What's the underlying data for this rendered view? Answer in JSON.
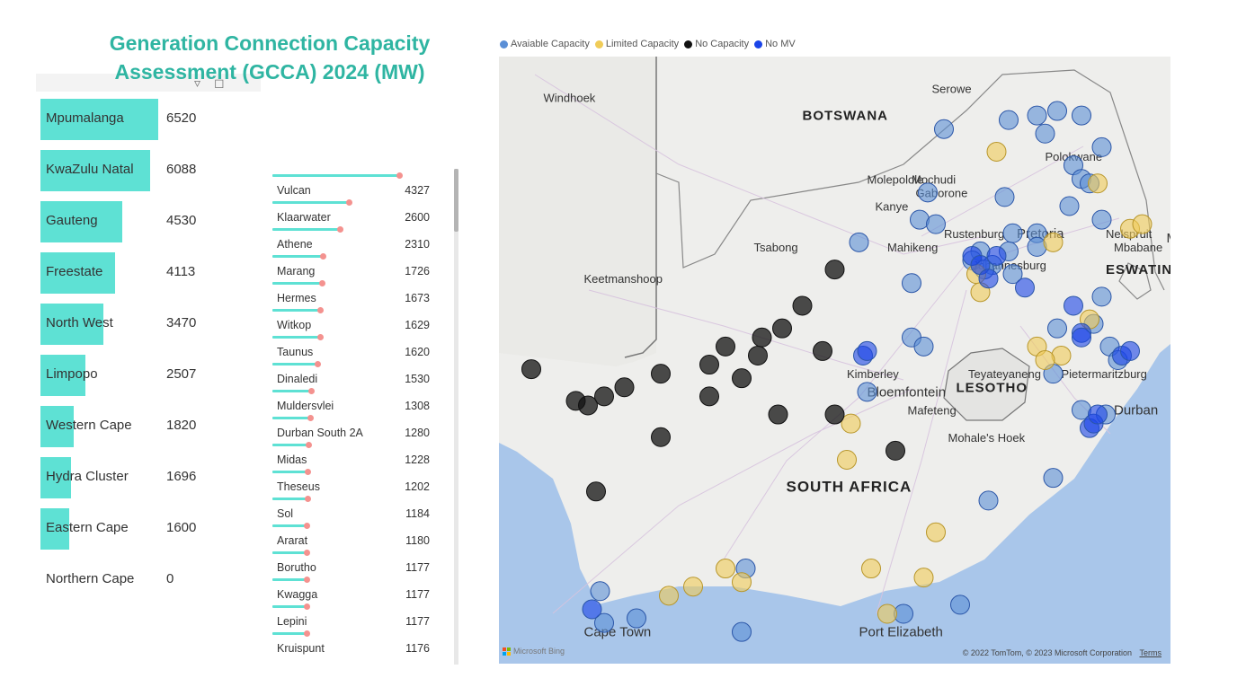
{
  "title": "Generation Connection Capacity Assessment (GCCA) 2024 (MW)",
  "toolbar": {
    "filter_icon": "filter-icon",
    "expand_icon": "focus-mode-icon"
  },
  "chart_data": [
    {
      "type": "bar",
      "orientation": "horizontal",
      "title": "Generation Connection Capacity Assessment (GCCA) 2024 (MW)",
      "categories": [
        "Mpumalanga",
        "KwaZulu Natal",
        "Gauteng",
        "Freestate",
        "North West",
        "Limpopo",
        "Western Cape",
        "Hydra Cluster",
        "Eastern Cape",
        "Northern Cape"
      ],
      "values": [
        6520,
        6088,
        4530,
        4113,
        3470,
        2507,
        1820,
        1696,
        1600,
        0
      ],
      "color": "#5ee1d4"
    },
    {
      "type": "bar",
      "style": "lollipop",
      "orientation": "horizontal",
      "categories": [
        "Vulcan",
        "Klaarwater",
        "Athene",
        "Marang",
        "Hermes",
        "Witkop",
        "Taunus",
        "Dinaledi",
        "Muldersvlei",
        "Durban South 2A",
        "Midas",
        "Theseus",
        "Sol",
        "Ararat",
        "Borutho",
        "Kwagga",
        "Lepini",
        "Kruispunt"
      ],
      "values": [
        4327,
        2600,
        2310,
        1726,
        1673,
        1629,
        1620,
        1530,
        1308,
        1280,
        1228,
        1202,
        1184,
        1180,
        1177,
        1177,
        1177,
        1176
      ],
      "stem_color": "#5ee1d4",
      "dot_color": "#f4928f"
    },
    {
      "type": "scatter",
      "subtype": "bubble-map",
      "legend": [
        {
          "name": "Avaiable Capacity",
          "color": "#5b8fd6"
        },
        {
          "name": "Limited Capacity",
          "color": "#f0cc58"
        },
        {
          "name": "No Capacity",
          "color": "#111111"
        },
        {
          "name": "No MV",
          "color": "#1a44e8"
        }
      ],
      "points": [
        {
          "lon": 28.6,
          "lat": -23.0,
          "status": "Avaiable Capacity"
        },
        {
          "lon": 29.3,
          "lat": -22.9,
          "status": "Avaiable Capacity"
        },
        {
          "lon": 29.8,
          "lat": -22.8,
          "status": "Avaiable Capacity"
        },
        {
          "lon": 30.4,
          "lat": -22.9,
          "status": "Avaiable Capacity"
        },
        {
          "lon": 27.0,
          "lat": -23.2,
          "status": "Avaiable Capacity"
        },
        {
          "lon": 29.5,
          "lat": -23.3,
          "status": "Avaiable Capacity"
        },
        {
          "lon": 30.9,
          "lat": -23.6,
          "status": "Avaiable Capacity"
        },
        {
          "lon": 30.2,
          "lat": -24.0,
          "status": "Avaiable Capacity"
        },
        {
          "lon": 30.4,
          "lat": -24.3,
          "status": "Avaiable Capacity"
        },
        {
          "lon": 26.6,
          "lat": -24.6,
          "status": "Avaiable Capacity"
        },
        {
          "lon": 28.5,
          "lat": -24.7,
          "status": "Avaiable Capacity"
        },
        {
          "lon": 30.1,
          "lat": -24.9,
          "status": "Avaiable Capacity"
        },
        {
          "lon": 30.9,
          "lat": -25.2,
          "status": "Avaiable Capacity"
        },
        {
          "lon": 26.4,
          "lat": -25.2,
          "status": "Avaiable Capacity"
        },
        {
          "lon": 26.8,
          "lat": -25.3,
          "status": "Avaiable Capacity"
        },
        {
          "lon": 28.7,
          "lat": -25.5,
          "status": "Avaiable Capacity"
        },
        {
          "lon": 29.3,
          "lat": -25.5,
          "status": "Avaiable Capacity"
        },
        {
          "lon": 24.9,
          "lat": -25.7,
          "status": "Avaiable Capacity"
        },
        {
          "lon": 28.6,
          "lat": -25.9,
          "status": "Avaiable Capacity"
        },
        {
          "lon": 29.3,
          "lat": -25.8,
          "status": "Avaiable Capacity"
        },
        {
          "lon": 26.2,
          "lat": -26.6,
          "status": "Avaiable Capacity"
        },
        {
          "lon": 28.7,
          "lat": -26.4,
          "status": "Avaiable Capacity"
        },
        {
          "lon": 30.9,
          "lat": -26.9,
          "status": "Avaiable Capacity"
        },
        {
          "lon": 29.8,
          "lat": -27.6,
          "status": "Avaiable Capacity"
        },
        {
          "lon": 26.2,
          "lat": -27.8,
          "status": "Avaiable Capacity"
        },
        {
          "lon": 31.1,
          "lat": -28.0,
          "status": "Avaiable Capacity"
        },
        {
          "lon": 29.7,
          "lat": -28.6,
          "status": "Avaiable Capacity"
        },
        {
          "lon": 25.1,
          "lat": -29.0,
          "status": "Avaiable Capacity"
        },
        {
          "lon": 30.4,
          "lat": -29.4,
          "status": "Avaiable Capacity"
        },
        {
          "lon": 31.0,
          "lat": -29.5,
          "status": "Avaiable Capacity"
        },
        {
          "lon": 29.7,
          "lat": -30.9,
          "status": "Avaiable Capacity"
        },
        {
          "lon": 28.1,
          "lat": -31.4,
          "status": "Avaiable Capacity"
        },
        {
          "lon": 22.1,
          "lat": -32.9,
          "status": "Avaiable Capacity"
        },
        {
          "lon": 27.4,
          "lat": -33.7,
          "status": "Avaiable Capacity"
        },
        {
          "lon": 18.5,
          "lat": -33.4,
          "status": "Avaiable Capacity"
        },
        {
          "lon": 19.4,
          "lat": -34.0,
          "status": "Avaiable Capacity"
        },
        {
          "lon": 18.6,
          "lat": -34.1,
          "status": "Avaiable Capacity"
        },
        {
          "lon": 22.0,
          "lat": -34.3,
          "status": "Avaiable Capacity"
        },
        {
          "lon": 26.0,
          "lat": -33.9,
          "status": "Avaiable Capacity"
        },
        {
          "lon": 31.3,
          "lat": -28.3,
          "status": "Avaiable Capacity"
        },
        {
          "lon": 30.7,
          "lat": -27.5,
          "status": "Avaiable Capacity"
        },
        {
          "lon": 27.9,
          "lat": -25.9,
          "status": "Avaiable Capacity"
        },
        {
          "lon": 27.7,
          "lat": -26.1,
          "status": "Avaiable Capacity"
        },
        {
          "lon": 28.2,
          "lat": -26.2,
          "status": "Avaiable Capacity"
        },
        {
          "lon": 28.0,
          "lat": -26.3,
          "status": "Avaiable Capacity"
        },
        {
          "lon": 26.5,
          "lat": -28.0,
          "status": "Avaiable Capacity"
        },
        {
          "lon": 30.6,
          "lat": -24.4,
          "status": "Avaiable Capacity"
        },
        {
          "lon": 28.3,
          "lat": -23.7,
          "status": "Limited Capacity"
        },
        {
          "lon": 30.8,
          "lat": -24.4,
          "status": "Limited Capacity"
        },
        {
          "lon": 31.6,
          "lat": -25.4,
          "status": "Limited Capacity"
        },
        {
          "lon": 31.9,
          "lat": -25.3,
          "status": "Limited Capacity"
        },
        {
          "lon": 29.7,
          "lat": -25.7,
          "status": "Limited Capacity"
        },
        {
          "lon": 27.8,
          "lat": -26.4,
          "status": "Limited Capacity"
        },
        {
          "lon": 27.9,
          "lat": -26.8,
          "status": "Limited Capacity"
        },
        {
          "lon": 30.6,
          "lat": -27.4,
          "status": "Limited Capacity"
        },
        {
          "lon": 29.3,
          "lat": -28.0,
          "status": "Limited Capacity"
        },
        {
          "lon": 29.9,
          "lat": -28.2,
          "status": "Limited Capacity"
        },
        {
          "lon": 29.5,
          "lat": -28.3,
          "status": "Limited Capacity"
        },
        {
          "lon": 24.7,
          "lat": -29.7,
          "status": "Limited Capacity"
        },
        {
          "lon": 24.6,
          "lat": -30.5,
          "status": "Limited Capacity"
        },
        {
          "lon": 26.8,
          "lat": -32.1,
          "status": "Limited Capacity"
        },
        {
          "lon": 25.2,
          "lat": -32.9,
          "status": "Limited Capacity"
        },
        {
          "lon": 26.5,
          "lat": -33.1,
          "status": "Limited Capacity"
        },
        {
          "lon": 21.6,
          "lat": -32.9,
          "status": "Limited Capacity"
        },
        {
          "lon": 22.0,
          "lat": -33.2,
          "status": "Limited Capacity"
        },
        {
          "lon": 20.8,
          "lat": -33.3,
          "status": "Limited Capacity"
        },
        {
          "lon": 20.2,
          "lat": -33.5,
          "status": "Limited Capacity"
        },
        {
          "lon": 25.6,
          "lat": -33.9,
          "status": "Limited Capacity"
        },
        {
          "lon": 16.8,
          "lat": -28.5,
          "status": "No Capacity"
        },
        {
          "lon": 17.9,
          "lat": -29.2,
          "status": "No Capacity"
        },
        {
          "lon": 18.6,
          "lat": -29.1,
          "status": "No Capacity"
        },
        {
          "lon": 18.2,
          "lat": -29.3,
          "status": "No Capacity"
        },
        {
          "lon": 19.1,
          "lat": -28.9,
          "status": "No Capacity"
        },
        {
          "lon": 20.0,
          "lat": -28.6,
          "status": "No Capacity"
        },
        {
          "lon": 21.2,
          "lat": -28.4,
          "status": "No Capacity"
        },
        {
          "lon": 21.6,
          "lat": -28.0,
          "status": "No Capacity"
        },
        {
          "lon": 22.0,
          "lat": -28.7,
          "status": "No Capacity"
        },
        {
          "lon": 22.4,
          "lat": -28.2,
          "status": "No Capacity"
        },
        {
          "lon": 21.2,
          "lat": -29.1,
          "status": "No Capacity"
        },
        {
          "lon": 23.0,
          "lat": -27.6,
          "status": "No Capacity"
        },
        {
          "lon": 23.5,
          "lat": -27.1,
          "status": "No Capacity"
        },
        {
          "lon": 22.5,
          "lat": -27.8,
          "status": "No Capacity"
        },
        {
          "lon": 24.0,
          "lat": -28.1,
          "status": "No Capacity"
        },
        {
          "lon": 24.3,
          "lat": -26.3,
          "status": "No Capacity"
        },
        {
          "lon": 24.3,
          "lat": -29.5,
          "status": "No Capacity"
        },
        {
          "lon": 20.0,
          "lat": -30.0,
          "status": "No Capacity"
        },
        {
          "lon": 22.9,
          "lat": -29.5,
          "status": "No Capacity"
        },
        {
          "lon": 25.8,
          "lat": -30.3,
          "status": "No Capacity"
        },
        {
          "lon": 18.4,
          "lat": -31.2,
          "status": "No Capacity"
        },
        {
          "lon": 27.7,
          "lat": -26.0,
          "status": "No MV"
        },
        {
          "lon": 27.9,
          "lat": -26.2,
          "status": "No MV"
        },
        {
          "lon": 28.1,
          "lat": -26.5,
          "status": "No MV"
        },
        {
          "lon": 28.3,
          "lat": -26.0,
          "status": "No MV"
        },
        {
          "lon": 29.0,
          "lat": -26.7,
          "status": "No MV"
        },
        {
          "lon": 30.2,
          "lat": -27.1,
          "status": "No MV"
        },
        {
          "lon": 30.4,
          "lat": -27.7,
          "status": "No MV"
        },
        {
          "lon": 30.4,
          "lat": -27.8,
          "status": "No MV"
        },
        {
          "lon": 25.0,
          "lat": -28.2,
          "status": "No MV"
        },
        {
          "lon": 25.1,
          "lat": -28.1,
          "status": "No MV"
        },
        {
          "lon": 31.4,
          "lat": -28.2,
          "status": "No MV"
        },
        {
          "lon": 31.6,
          "lat": -28.1,
          "status": "No MV"
        },
        {
          "lon": 30.6,
          "lat": -29.8,
          "status": "No MV"
        },
        {
          "lon": 30.7,
          "lat": -29.7,
          "status": "No MV"
        },
        {
          "lon": 30.8,
          "lat": -29.5,
          "status": "No MV"
        },
        {
          "lon": 18.3,
          "lat": -33.8,
          "status": "No MV"
        }
      ]
    }
  ],
  "map": {
    "country_labels": [
      "BOTSWANA",
      "SOUTH AFRICA",
      "LESOTHO",
      "ESWATINI"
    ],
    "city_labels": [
      "Windhoek",
      "Serowe",
      "Mochudi",
      "Polokwane",
      "Molepolole",
      "Gaborone",
      "Kanye",
      "Rustenburg",
      "Pretoria",
      "Nelspruit",
      "Map",
      "Mbabane",
      "Tsabong",
      "Mahikeng",
      "Johannesburg",
      "Keetmanshoop",
      "Kimberley",
      "Teyateyaneng",
      "Bloemfontein",
      "Pietermaritzburg",
      "Mafeteng",
      "Durban",
      "Mohale's Hoek",
      "Cape Town",
      "Port Elizabeth"
    ],
    "attribution": "Microsoft Bing",
    "copyright": "© 2022 TomTom, © 2023 Microsoft Corporation",
    "terms": "Terms"
  }
}
